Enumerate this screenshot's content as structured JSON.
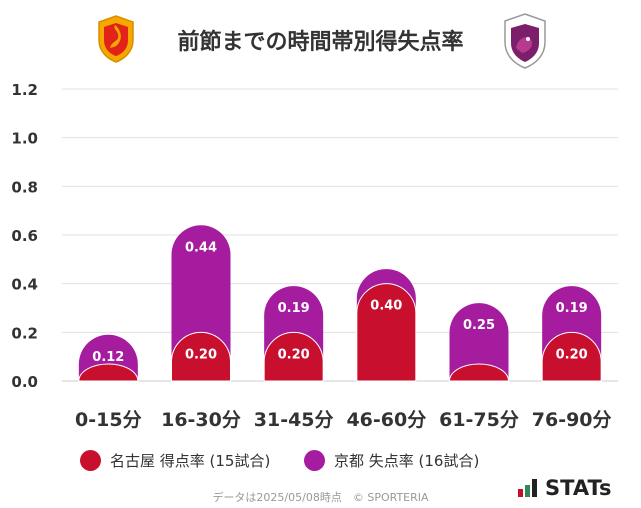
{
  "chart_data": {
    "type": "bar",
    "title": "前節までの時間帯別得失点率",
    "categories": [
      "0-15分",
      "16-30分",
      "31-45分",
      "46-60分",
      "61-75分",
      "76-90分"
    ],
    "series": [
      {
        "name": "名古屋 得点率 (15試合)",
        "color": "#c8102e",
        "values": [
          0.07,
          0.2,
          0.2,
          0.4,
          0.07,
          0.2
        ],
        "labels": [
          "",
          "0.20",
          "0.20",
          "0.40",
          "",
          "0.20"
        ]
      },
      {
        "name": "京都 失点率 (16試合)",
        "color": "#a51c9f",
        "values": [
          0.12,
          0.44,
          0.19,
          0.06,
          0.25,
          0.19
        ],
        "labels": [
          "0.12",
          "0.44",
          "0.19",
          "",
          "0.25",
          "0.19"
        ]
      }
    ],
    "ylim": [
      0,
      1.2
    ],
    "yticks": [
      "0.0",
      "0.2",
      "0.4",
      "0.6",
      "0.8",
      "1.0",
      "1.2"
    ],
    "grid": true,
    "stacked": true,
    "legend_position": "bottom"
  },
  "footer": "データは2025/05/08時点　© SPORTERIA",
  "brand": "STATs",
  "colors": {
    "nagoya": "#c8102e",
    "kyoto": "#a51c9f",
    "grid": "#e0e0e0",
    "text": "#333333"
  },
  "icons": {
    "left_crest": "nagoya-grampus-crest-icon",
    "right_crest": "kyoto-sanga-crest-icon"
  }
}
